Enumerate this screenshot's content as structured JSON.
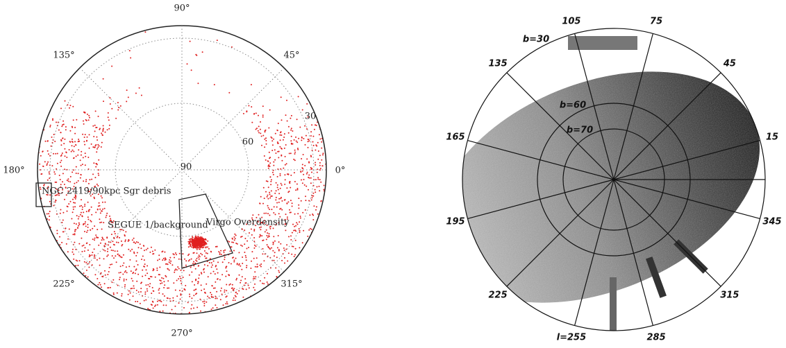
{
  "left_panel": {
    "angle_labels": [
      "90°",
      "135°",
      "45°",
      "180°",
      "0°",
      "225°",
      "315°",
      "270°"
    ],
    "ring_labels": [
      "30",
      "60",
      "90"
    ],
    "annotations": [
      "NGC 2419/90kpc Sgr debris",
      "SEGUE 1/background",
      "Virgo Overdensity"
    ]
  },
  "right_panel": {
    "longitude_labels": [
      "105",
      "75",
      "135",
      "45",
      "165",
      "15",
      "195",
      "345",
      "225",
      "315",
      "l=255",
      "285"
    ],
    "latitude_labels": [
      "b=30",
      "b=60",
      "b=70"
    ]
  }
}
